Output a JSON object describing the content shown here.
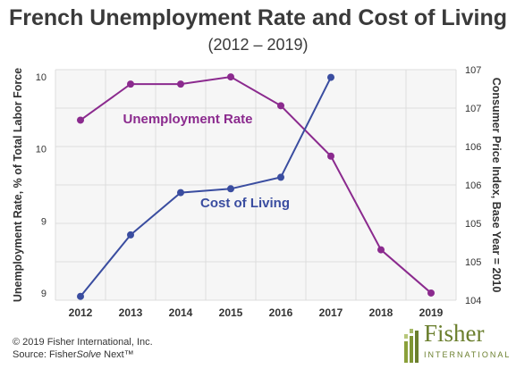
{
  "title": "French Unemployment Rate and Cost of Living",
  "subtitle": "(2012 – 2019)",
  "footer": {
    "copyright": "© 2019 Fisher International, Inc.",
    "source_prefix": "Source: Fisher",
    "source_italic": "Solve",
    "source_suffix": " Next™"
  },
  "logo": {
    "name": "Fisher",
    "sub": "INTERNATIONAL"
  },
  "chart_data": {
    "type": "line",
    "categories": [
      "2012",
      "2013",
      "2014",
      "2015",
      "2016",
      "2017",
      "2018",
      "2019"
    ],
    "ylabel": "Unemployment Rate, % of Total Labor Force",
    "y2label": "Consumer Price Index, Base Year = 2010",
    "yticks": [
      "9",
      "9",
      "10",
      "10"
    ],
    "y2ticks": [
      "104",
      "105",
      "105",
      "106",
      "106",
      "107",
      "107"
    ],
    "ylim": [
      8.95,
      10.55
    ],
    "y2lim": [
      104.0,
      107.0
    ],
    "grid": true,
    "series": [
      {
        "name": "Unemployment Rate",
        "axis": "left",
        "color": "#8b2a8e",
        "values": [
          10.2,
          10.45,
          10.45,
          10.5,
          10.3,
          9.95,
          9.3,
          9.0
        ]
      },
      {
        "name": "Cost of Living",
        "axis": "right",
        "color": "#3a4da0",
        "values": [
          104.05,
          104.85,
          105.4,
          105.45,
          105.6,
          106.9,
          null,
          null
        ]
      }
    ],
    "annotations": [
      {
        "text": "Unemployment Rate",
        "series": 0
      },
      {
        "text": "Cost of Living",
        "series": 1
      }
    ]
  }
}
